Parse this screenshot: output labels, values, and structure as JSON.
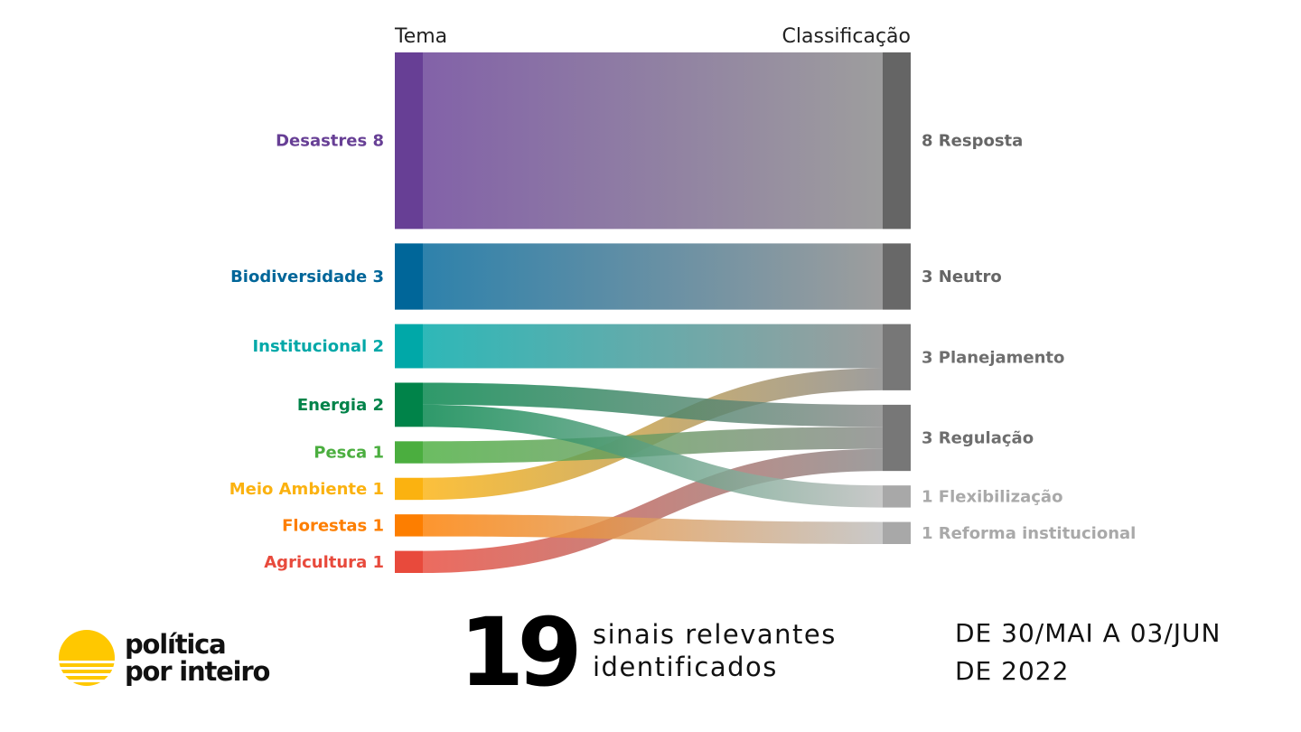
{
  "chart_data": {
    "type": "sankey",
    "column_headers": {
      "left": "Tema",
      "right": "Classificação"
    },
    "sources": [
      {
        "name": "Desastres",
        "value": 8,
        "label": "Desastres 8",
        "color": "#673F95"
      },
      {
        "name": "Biodiversidade",
        "value": 3,
        "label": "Biodiversidade 3",
        "color": "#006699"
      },
      {
        "name": "Institucional",
        "value": 2,
        "label": "Institucional 2",
        "color": "#00A8A8"
      },
      {
        "name": "Energia",
        "value": 2,
        "label": "Energia 2",
        "color": "#008349"
      },
      {
        "name": "Pesca",
        "value": 1,
        "label": "Pesca 1",
        "color": "#4BAE3F"
      },
      {
        "name": "Meio Ambiente",
        "value": 1,
        "label": "Meio Ambiente 1",
        "color": "#FBB210"
      },
      {
        "name": "Florestas",
        "value": 1,
        "label": "Florestas 1",
        "color": "#FD7E00"
      },
      {
        "name": "Agricultura",
        "value": 1,
        "label": "Agricultura 1",
        "color": "#E84A3C"
      }
    ],
    "targets": [
      {
        "name": "Resposta",
        "value": 8,
        "label": "8 Resposta",
        "color": "#656565",
        "label_color": "#666666"
      },
      {
        "name": "Neutro",
        "value": 3,
        "label": "3 Neutro",
        "color": "#686868",
        "label_color": "#666666"
      },
      {
        "name": "Planejamento",
        "value": 3,
        "label": "3 Planejamento",
        "color": "#777777",
        "label_color": "#6E6E6E"
      },
      {
        "name": "Regulação",
        "value": 3,
        "label": "3 Regulação",
        "color": "#777777",
        "label_color": "#6E6E6E"
      },
      {
        "name": "Flexibilização",
        "value": 1,
        "label": "1 Flexibilização",
        "color": "#A8A8A8",
        "label_color": "#A9A9A9"
      },
      {
        "name": "Reforma institucional",
        "value": 1,
        "label": "1 Reforma institucional",
        "color": "#A8A8A8",
        "label_color": "#A9A9A9"
      }
    ],
    "flows": [
      {
        "source": "Desastres",
        "target": "Resposta",
        "value": 8
      },
      {
        "source": "Biodiversidade",
        "target": "Neutro",
        "value": 3
      },
      {
        "source": "Institucional",
        "target": "Planejamento",
        "value": 2
      },
      {
        "source": "Meio Ambiente",
        "target": "Planejamento",
        "value": 1
      },
      {
        "source": "Energia",
        "target": "Regulação",
        "value": 1
      },
      {
        "source": "Pesca",
        "target": "Regulação",
        "value": 1
      },
      {
        "source": "Agricultura",
        "target": "Regulação",
        "value": 1
      },
      {
        "source": "Energia",
        "target": "Flexibilização",
        "value": 1
      },
      {
        "source": "Florestas",
        "target": "Reforma institucional",
        "value": 1
      }
    ]
  },
  "footer": {
    "logo_line1": "política",
    "logo_line2": "por inteiro",
    "logo_color": "#FFC800",
    "count": "19",
    "signals_line1": "sinais relevantes",
    "signals_line2": "identificados",
    "period_line1": "DE 30/MAI A 03/JUN",
    "period_line2": "DE 2022"
  }
}
